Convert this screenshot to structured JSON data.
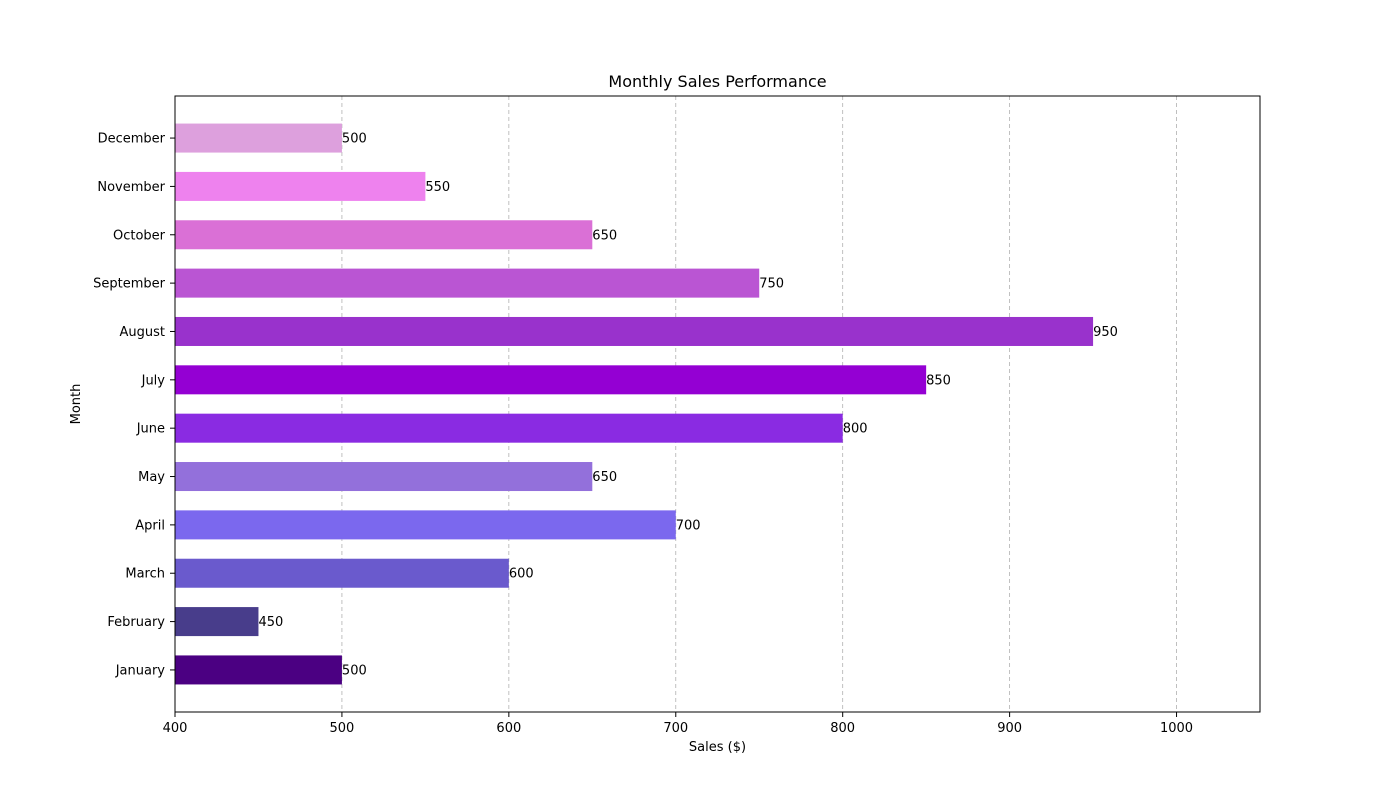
{
  "chart_data": {
    "type": "bar",
    "orientation": "horizontal",
    "title": "Monthly Sales Performance",
    "xlabel": "Sales ($)",
    "ylabel": "Month",
    "xlim": [
      400,
      1050
    ],
    "xticks": [
      400,
      500,
      600,
      700,
      800,
      900,
      1000
    ],
    "grid": {
      "x": true,
      "y": false,
      "style": "dashed"
    },
    "categories": [
      "January",
      "February",
      "March",
      "April",
      "May",
      "June",
      "July",
      "August",
      "September",
      "October",
      "November",
      "December"
    ],
    "values": [
      500,
      450,
      600,
      700,
      650,
      800,
      850,
      950,
      750,
      650,
      550,
      500
    ],
    "colors": [
      "#4b0082",
      "#483d8b",
      "#6a5acd",
      "#7b68ee",
      "#9370db",
      "#8a2be2",
      "#9400d3",
      "#9932cc",
      "#ba55d3",
      "#da70d6",
      "#ee82ee",
      "#dda0dd"
    ],
    "data_labels": [
      "500",
      "450",
      "600",
      "700",
      "650",
      "800",
      "850",
      "950",
      "750",
      "650",
      "550",
      "500"
    ]
  }
}
